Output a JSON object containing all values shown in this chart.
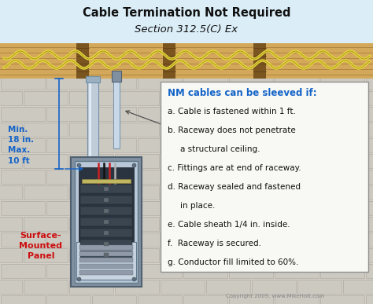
{
  "title_line1": "Cable Termination Not Required",
  "title_line2": "Section 312.5(C) Ex",
  "title_bg": "#dbeef8",
  "wall_bg": "#d4d0c8",
  "brick_mortar": "#c0bdb4",
  "brick_face": "#ccc9c0",
  "wood_color": "#d4a85a",
  "wood_grain": "#9a7030",
  "wood_dark_stripe": "#7a5520",
  "conduit_fill": "#c0ccd8",
  "conduit_edge": "#7090a8",
  "cable_yellow": "#e8d840",
  "cable_edge": "#a09010",
  "panel_outer": "#9aaabb",
  "panel_face": "#b8c8d8",
  "panel_interior": "#2a3440",
  "panel_door": "#c8d4e0",
  "text_blue": "#1464c8",
  "text_red": "#cc1010",
  "text_black": "#101010",
  "arrow_color": "#1464c8",
  "copyright": "Copyright 2009, www.MikeHolt.com",
  "fig_bg": "#ffffff",
  "box_bg": "#f8f8f4",
  "box_edge": "#909090",
  "nm_title": "NM cables can be sleeved if:",
  "nm_items": [
    "a. Cable is fastened within 1 ft.",
    "b. Raceway does not penetrate",
    "   a structural ceiling.",
    "c. Fittings are at end of raceway.",
    "d. Raceway sealed and fastened",
    "   in place.",
    "e. Cable sheath 1/4 in. inside.",
    "f.  Raceway is secured.",
    "g. Conductor fill limited to 60%."
  ]
}
